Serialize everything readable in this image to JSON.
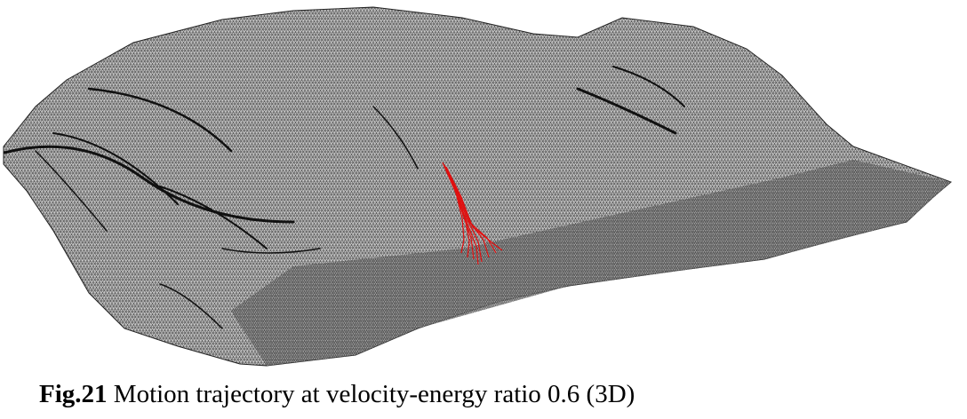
{
  "caption": {
    "label": "Fig.21",
    "text": "Motion trajectory at velocity-energy ratio 0.6 (3D)"
  }
}
